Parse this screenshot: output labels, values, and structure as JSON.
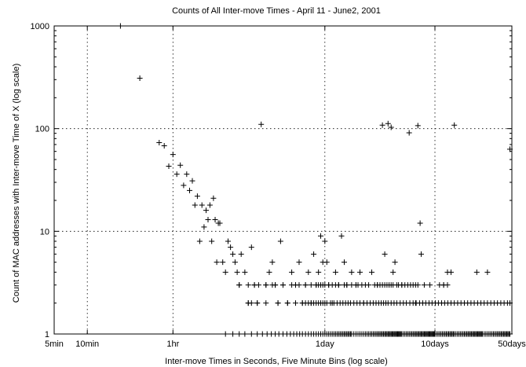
{
  "chart_data": {
    "type": "scatter",
    "title": "Counts of All Inter-move Times - April 11 - June2, 2001",
    "xlabel": "Inter-move Times in Seconds, Five Minute Bins (log scale)",
    "ylabel": "Count of  MAC addresses with Inter-move Time of X (log scale)",
    "x_scale": "log",
    "y_scale": "log",
    "x_unit": "seconds",
    "xlim": [
      300,
      4320000
    ],
    "ylim": [
      1,
      1000
    ],
    "grid": true,
    "marker": "+",
    "x_ticks": [
      {
        "value": 300,
        "label": "5min"
      },
      {
        "value": 600,
        "label": "10min"
      },
      {
        "value": 3600,
        "label": "1hr"
      },
      {
        "value": 86400,
        "label": "1day"
      },
      {
        "value": 864000,
        "label": "10days"
      },
      {
        "value": 4320000,
        "label": "50days"
      }
    ],
    "y_ticks": [
      {
        "value": 1,
        "label": "1"
      },
      {
        "value": 10,
        "label": "10"
      },
      {
        "value": 100,
        "label": "100"
      },
      {
        "value": 1000,
        "label": "1000"
      }
    ],
    "series": [
      {
        "points": [
          [
            1200,
            1000
          ],
          [
            1800,
            310
          ],
          [
            2700,
            73
          ],
          [
            3000,
            68
          ],
          [
            3300,
            43
          ],
          [
            3600,
            56
          ],
          [
            3900,
            36
          ],
          [
            4200,
            44
          ],
          [
            4500,
            28
          ],
          [
            4800,
            36
          ],
          [
            5100,
            25
          ],
          [
            5400,
            31
          ],
          [
            5700,
            18
          ],
          [
            6000,
            22
          ],
          [
            6300,
            8
          ],
          [
            6600,
            18
          ],
          [
            6900,
            11
          ],
          [
            7200,
            16
          ],
          [
            7500,
            13
          ],
          [
            7800,
            18
          ],
          [
            8100,
            8
          ],
          [
            8400,
            21
          ],
          [
            8700,
            13
          ],
          [
            9000,
            5
          ],
          [
            9300,
            12
          ],
          [
            9600,
            12
          ],
          [
            10200,
            5
          ],
          [
            10800,
            4
          ],
          [
            11400,
            8
          ],
          [
            12000,
            7
          ],
          [
            12600,
            6
          ],
          [
            13200,
            5
          ],
          [
            13800,
            4
          ],
          [
            14400,
            3
          ],
          [
            15000,
            6
          ],
          [
            16200,
            4
          ],
          [
            17400,
            2
          ],
          [
            18600,
            7
          ],
          [
            19800,
            3
          ],
          [
            21000,
            2
          ],
          [
            22800,
            110
          ],
          [
            25200,
            3
          ],
          [
            27000,
            4
          ],
          [
            28800,
            5
          ],
          [
            30600,
            3
          ],
          [
            32400,
            2
          ],
          [
            34200,
            8
          ],
          [
            36000,
            3
          ],
          [
            39600,
            2
          ],
          [
            43200,
            4
          ],
          [
            46800,
            3
          ],
          [
            50400,
            5
          ],
          [
            54000,
            2
          ],
          [
            57600,
            3
          ],
          [
            61200,
            4
          ],
          [
            64800,
            2
          ],
          [
            68400,
            6
          ],
          [
            72000,
            3
          ],
          [
            75600,
            4
          ],
          [
            79200,
            9
          ],
          [
            82800,
            5
          ],
          [
            86400,
            8
          ],
          [
            90000,
            5
          ],
          [
            93600,
            3
          ],
          [
            100800,
            2
          ],
          [
            108000,
            4
          ],
          [
            115200,
            3
          ],
          [
            122400,
            9
          ],
          [
            129600,
            5
          ],
          [
            136800,
            3
          ],
          [
            151200,
            4
          ],
          [
            165600,
            3
          ],
          [
            180000,
            4
          ],
          [
            194400,
            2
          ],
          [
            230400,
            4
          ],
          [
            259200,
            3
          ],
          [
            288000,
            108
          ],
          [
            302400,
            6
          ],
          [
            324000,
            112
          ],
          [
            345600,
            103
          ],
          [
            360000,
            4
          ],
          [
            374400,
            5
          ],
          [
            432000,
            3
          ],
          [
            504000,
            91
          ],
          [
            576000,
            2
          ],
          [
            604800,
            107
          ],
          [
            633600,
            12
          ],
          [
            648000,
            6
          ],
          [
            1036800,
            3
          ],
          [
            1123200,
            4
          ],
          [
            1209600,
            4
          ],
          [
            1296000,
            108
          ],
          [
            2073600,
            4
          ],
          [
            2592000,
            4
          ],
          [
            4147200,
            63
          ]
        ],
        "bands": [
          {
            "y": 3,
            "x": [
              14400,
              17400,
              19800,
              21600,
              25200,
              28800,
              30600,
              36000,
              43200,
              46800,
              50400,
              57600,
              64800,
              72000,
              75600,
              79200,
              82800,
              86400,
              93600,
              100800,
              108000,
              115200,
              129600,
              136800,
              151200,
              165600,
              172800,
              187200,
              201600,
              216000,
              244800,
              259200,
              273600,
              288000,
              302400,
              316800,
              331200,
              345600,
              360000,
              388800,
              403200,
              432000,
              460800,
              489600,
              518400,
              547200,
              576000,
              604800,
              691200,
              777600,
              950400,
              1036800,
              1123200
            ]
          },
          {
            "y": 2,
            "x": [
              17400,
              18600,
              21000,
              25200,
              32400,
              39600,
              46800,
              54000,
              57600,
              61200,
              64800,
              68400,
              72000,
              75600,
              79200,
              82800,
              86400,
              90000,
              97200,
              104400,
              111600,
              118800,
              126000,
              133200,
              140400,
              147600,
              158400,
              169200,
              180000,
              194400,
              208800,
              223200,
              237600,
              252000,
              266400,
              280800,
              295200,
              309600,
              324000,
              345600,
              367200,
              388800,
              417600,
              446400,
              475200,
              511200,
              547200,
              583200,
              626400,
              669600,
              712800,
              763200,
              813600,
              871200,
              928800,
              993600,
              1058400,
              1130400,
              1209600,
              1296000,
              1389600,
              1490400,
              1598400,
              1713600,
              1836000,
              1965600,
              2109600,
              2260800,
              2419200,
              2592000,
              2779200,
              2980800,
              3196800,
              3427200,
              3672000,
              3938400,
              4147200
            ]
          },
          {
            "y": 1,
            "x": [
              10800,
              12600,
              14400,
              16200,
              18600,
              21000,
              23400,
              25800,
              28200,
              30600,
              33000,
              36000,
              39000,
              42000,
              45000,
              48000,
              51000,
              54000,
              57600,
              61200,
              64800,
              68400,
              72000,
              75600,
              79200,
              82800,
              86400,
              90000,
              93600,
              97200,
              100800,
              104400,
              108000,
              111600,
              115200,
              118800,
              122400,
              126000,
              129600,
              133200,
              136800,
              140400,
              144000,
              147600,
              151200,
              158400,
              165600,
              172800,
              180000,
              187200,
              194400,
              201600,
              208800,
              216000,
              223200,
              230400,
              237600,
              244800,
              252000,
              259200,
              266400,
              273600,
              280800,
              288000,
              295200,
              302400,
              309600,
              316800,
              324000,
              331200,
              338400,
              345600,
              352800,
              360000,
              367200,
              374400,
              381600,
              388800,
              396000,
              403200,
              410400,
              417600,
              424800,
              432000,
              446400,
              460800,
              475200,
              489600,
              504000,
              518400,
              532800,
              547200,
              561600,
              576000,
              590400,
              604800,
              619200,
              633600,
              648000,
              662400,
              676800,
              691200,
              705600,
              720000,
              734400,
              748800,
              763200,
              777600,
              792000,
              806400,
              820800,
              835200,
              849600,
              864000,
              892800,
              921600,
              950400,
              979200,
              1008000,
              1036800,
              1065600,
              1094400,
              1123200,
              1152000,
              1180800,
              1209600,
              1238400,
              1267200,
              1296000,
              1339200,
              1382400,
              1425600,
              1468800,
              1512000,
              1555200,
              1598400,
              1641600,
              1684800,
              1728000,
              1771200,
              1814400,
              1857600,
              1900800,
              1944000,
              1987200,
              2030400,
              2073600,
              2116800,
              2160000,
              2203200,
              2246400,
              2289600,
              2332800,
              2419200,
              2505600,
              2592000,
              2678400,
              2764800,
              2851200,
              2937600,
              3024000,
              3110400,
              3196800,
              3283200,
              3369600,
              3456000,
              3542400,
              3628800,
              3715200,
              3801600,
              3888000,
              3974400,
              4060800,
              4147200
            ]
          }
        ]
      }
    ]
  }
}
